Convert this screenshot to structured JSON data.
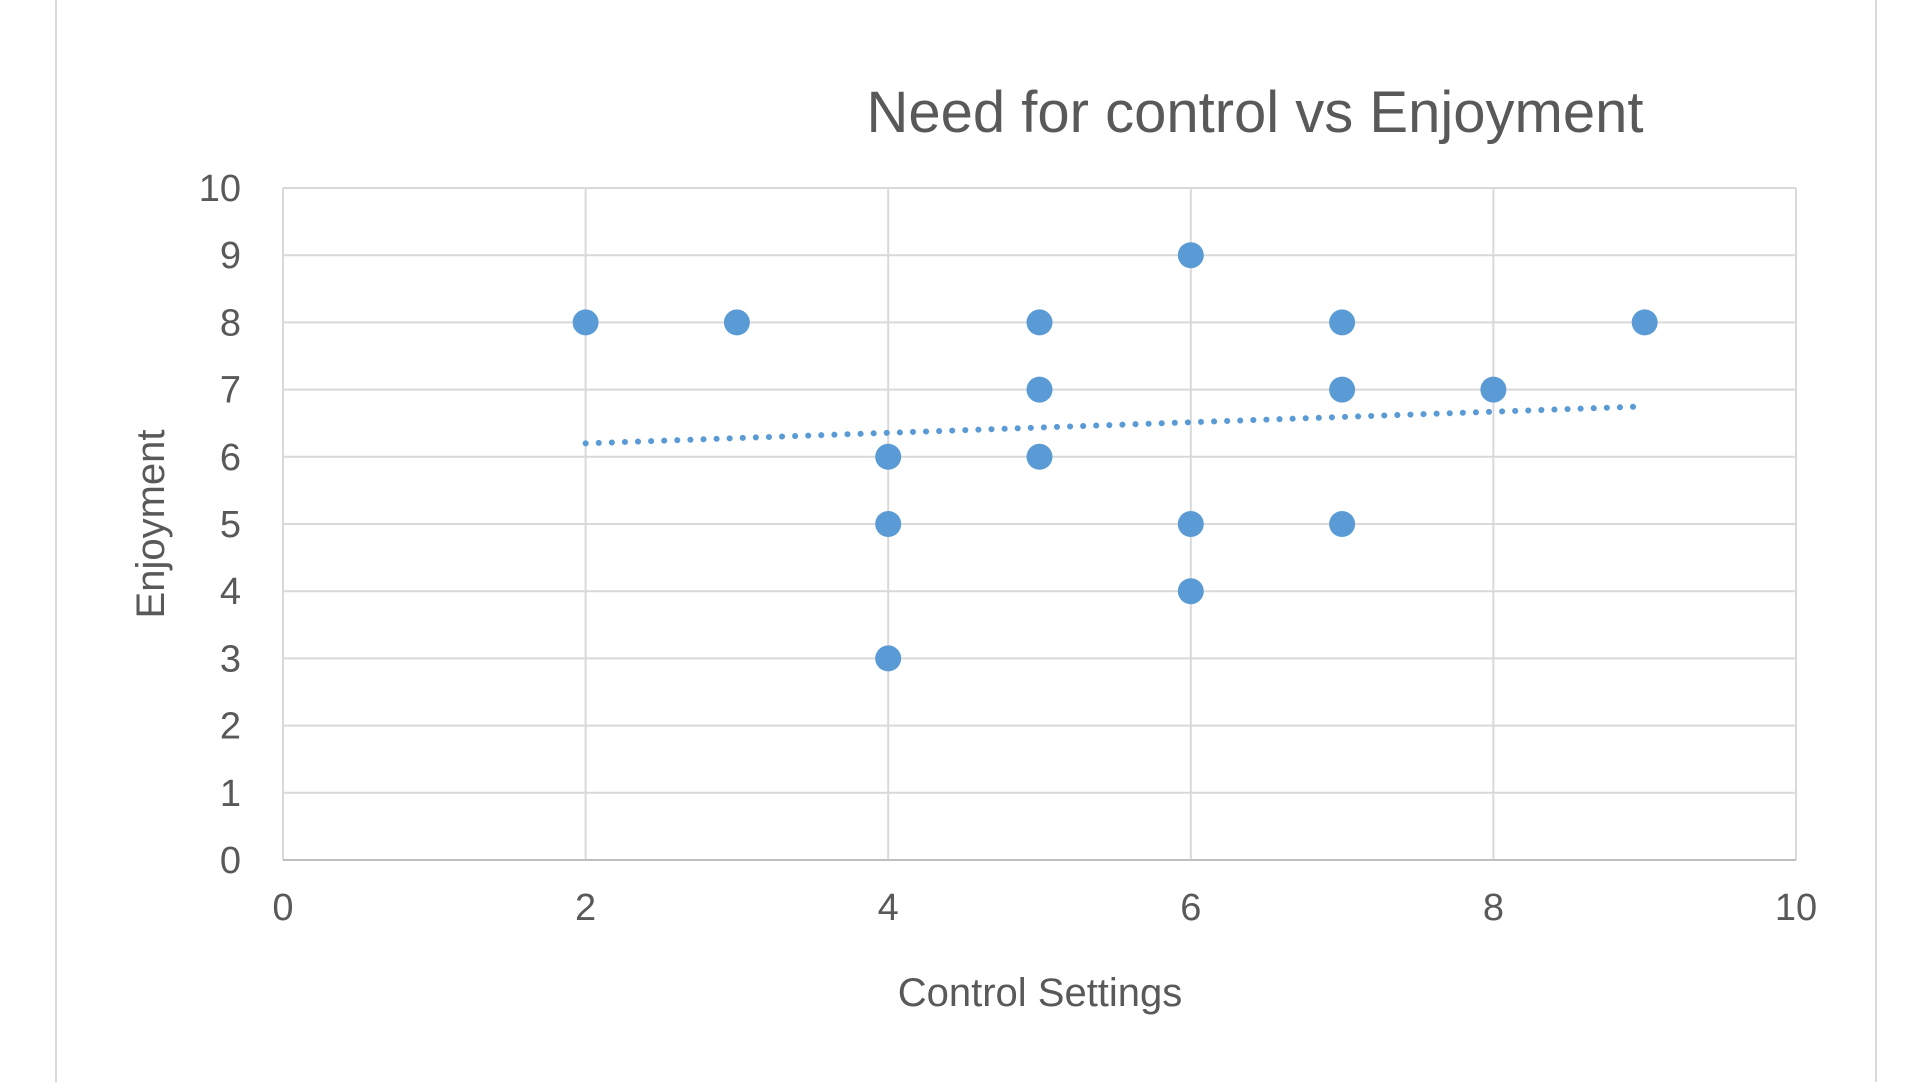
{
  "chart_data": {
    "type": "scatter",
    "title": "Need for control vs Enjoyment",
    "xlabel": "Control Settings",
    "ylabel": "Enjoyment",
    "xlim": [
      0,
      10
    ],
    "ylim": [
      0,
      10
    ],
    "xticks": [
      0,
      2,
      4,
      6,
      8,
      10
    ],
    "yticks": [
      0,
      1,
      2,
      3,
      4,
      5,
      6,
      7,
      8,
      9,
      10
    ],
    "grid": true,
    "legend": "none",
    "series": [
      {
        "color": "#5b9bd5",
        "points": [
          {
            "x": 2,
            "y": 8
          },
          {
            "x": 3,
            "y": 8
          },
          {
            "x": 4,
            "y": 6
          },
          {
            "x": 4,
            "y": 5
          },
          {
            "x": 4,
            "y": 3
          },
          {
            "x": 5,
            "y": 8
          },
          {
            "x": 5,
            "y": 7
          },
          {
            "x": 5,
            "y": 6
          },
          {
            "x": 6,
            "y": 9
          },
          {
            "x": 6,
            "y": 5
          },
          {
            "x": 6,
            "y": 4
          },
          {
            "x": 7,
            "y": 8
          },
          {
            "x": 7,
            "y": 7
          },
          {
            "x": 7,
            "y": 5
          },
          {
            "x": 8,
            "y": 7
          },
          {
            "x": 9,
            "y": 8
          }
        ]
      }
    ],
    "trendline": {
      "type": "linear",
      "style": "dotted",
      "color": "#5b9bd5",
      "from": {
        "x": 2,
        "y": 6.2
      },
      "to": {
        "x": 9,
        "y": 6.75
      }
    }
  }
}
